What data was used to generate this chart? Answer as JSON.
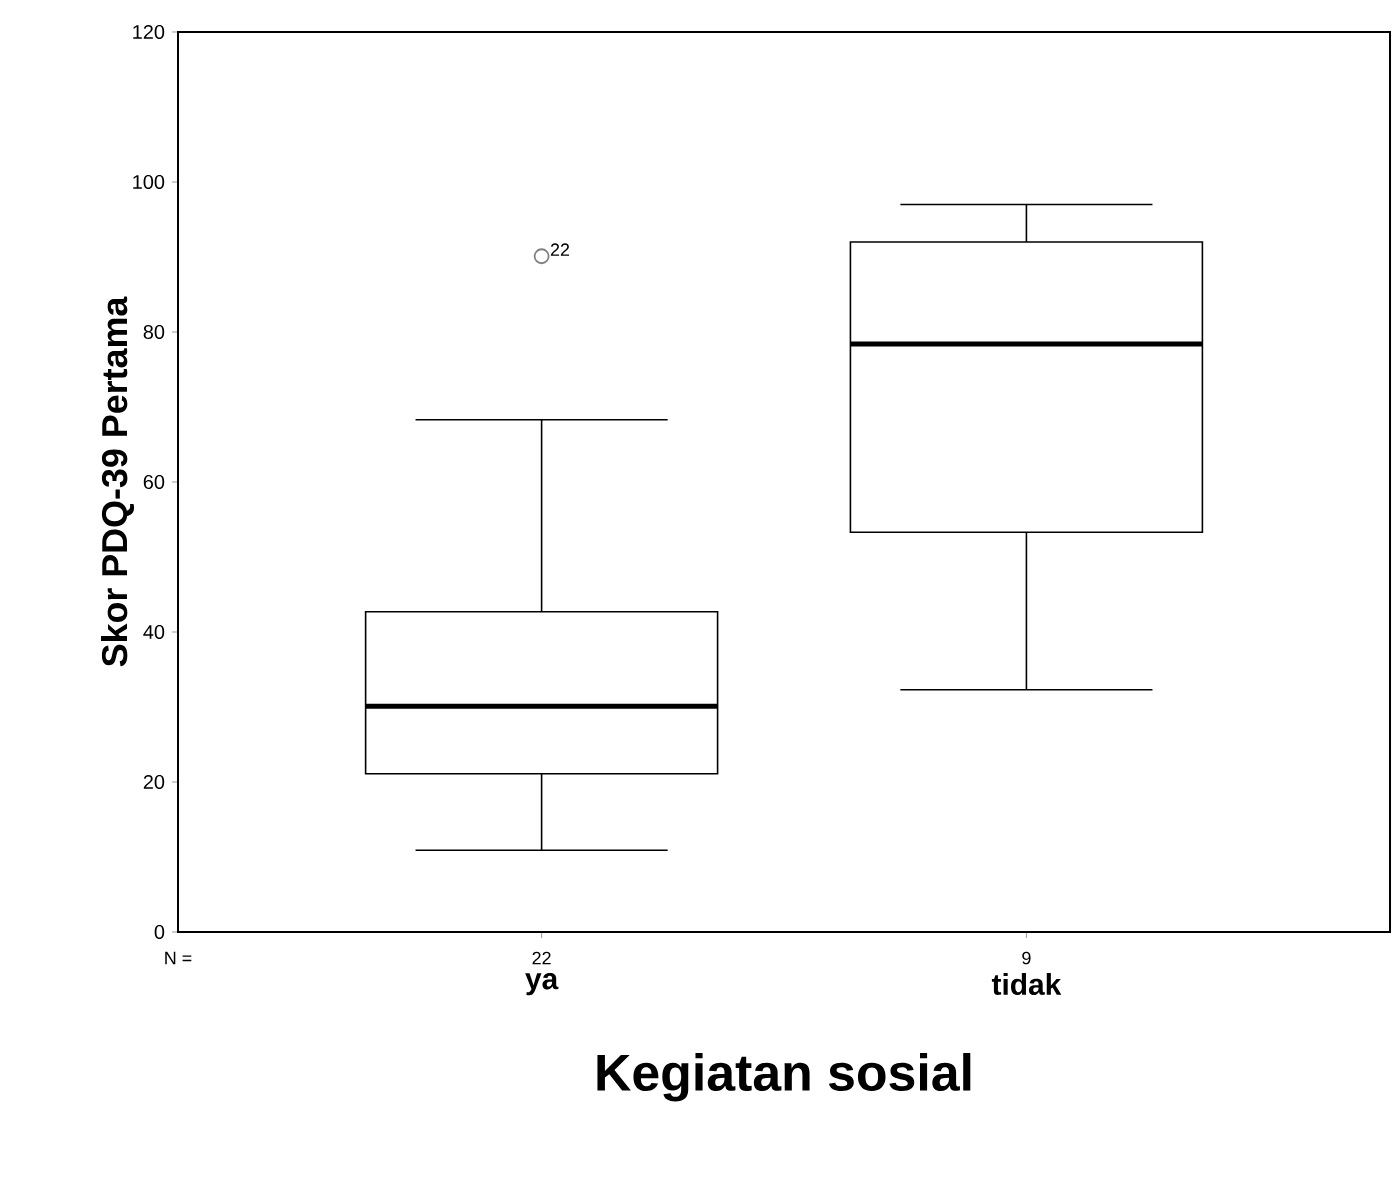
{
  "chart_data": {
    "type": "box",
    "xlabel": "Kegiatan sosial",
    "ylabel": "Skor PDQ-39 Pertama",
    "categories": [
      "ya",
      "tidak"
    ],
    "boxes": [
      {
        "low": 10.9,
        "q1": 21.1,
        "median": 30.1,
        "q3": 42.7,
        "high": 68.3,
        "outliers": [
          90.1
        ]
      },
      {
        "low": 32.3,
        "q1": 53.3,
        "median": 78.4,
        "q3": 92,
        "high": 97
      }
    ],
    "ylim": [
      0,
      120
    ],
    "yticks": [
      0,
      20,
      40,
      60,
      80,
      100,
      120
    ],
    "annotations": [
      "N =",
      "22",
      "9",
      "22"
    ],
    "grid": false
  }
}
